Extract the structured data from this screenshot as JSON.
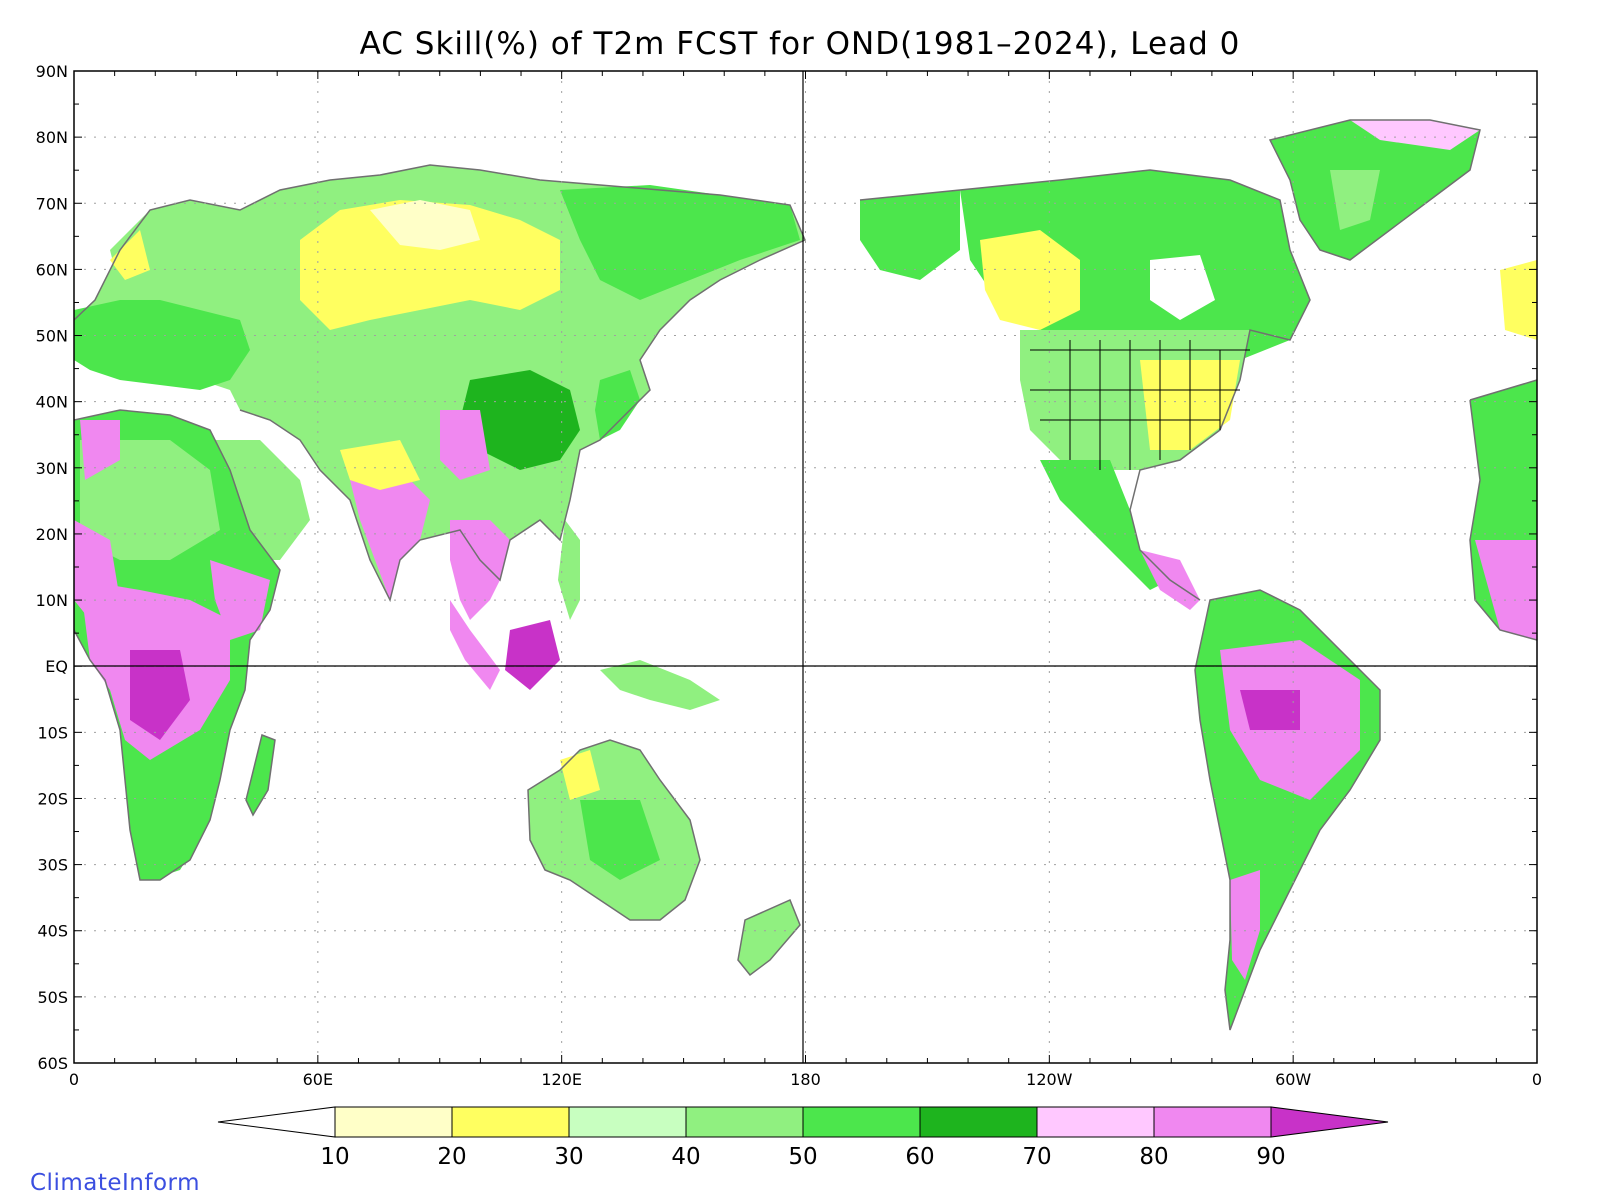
{
  "title": "AC Skill(%) of T2m FCST for OND(1981–2024), Lead 0",
  "credit": "ClimateInform",
  "lat_labels": [
    "90N",
    "80N",
    "70N",
    "60N",
    "50N",
    "40N",
    "30N",
    "20N",
    "10N",
    "EQ",
    "10S",
    "20S",
    "30S",
    "40S",
    "50S",
    "60S"
  ],
  "lon_labels": [
    "0",
    "60E",
    "120E",
    "180",
    "120W",
    "60W",
    "0"
  ],
  "colorbar": {
    "labels": [
      "10",
      "20",
      "30",
      "40",
      "50",
      "60",
      "70",
      "80",
      "90"
    ],
    "colors": [
      "#ffffff",
      "#ffffc8",
      "#ffff60",
      "#c8ffc0",
      "#90f080",
      "#4ce64c",
      "#1eb41e",
      "#ffc8ff",
      "#f088f0",
      "#c832c8"
    ]
  },
  "colors": {
    "coast": "#707070",
    "border": "#000000",
    "grid": "#a0a0a0"
  }
}
